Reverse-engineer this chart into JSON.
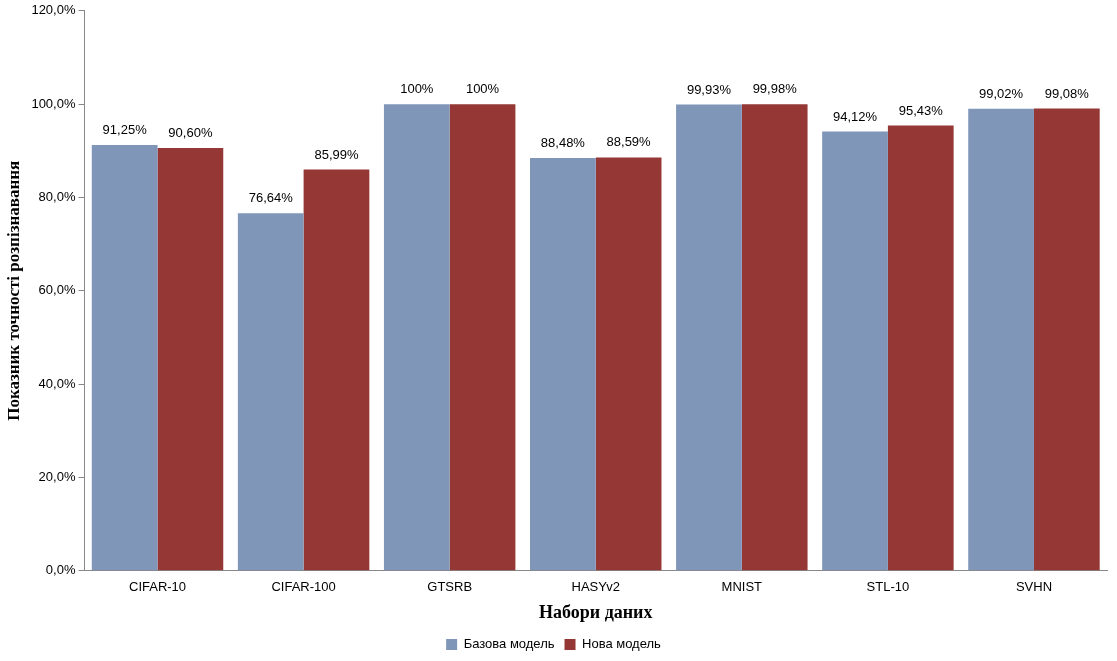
{
  "chart_data": {
    "type": "bar",
    "xlabel": "Набори даних",
    "ylabel": "Показник точності розпізнавання",
    "categories": [
      "CIFAR-10",
      "CIFAR-100",
      "GTSRB",
      "HASYv2",
      "MNIST",
      "STL-10",
      "SVHN"
    ],
    "series": [
      {
        "name": "Базова модель",
        "color": "#7f96b8",
        "values": [
          91.25,
          76.64,
          100,
          88.48,
          99.93,
          94.12,
          99.02
        ],
        "value_labels": [
          "91,25%",
          "76,64%",
          "100%",
          "88,48%",
          "99,93%",
          "94,12%",
          "99,02%"
        ]
      },
      {
        "name": "Нова модель",
        "color": "#953735",
        "values": [
          90.6,
          85.99,
          100,
          88.59,
          99.98,
          95.43,
          99.08
        ],
        "value_labels": [
          "90,60%",
          "85,99%",
          "100%",
          "88,59%",
          "99,98%",
          "95,43%",
          "99,08%"
        ]
      }
    ],
    "ylim": [
      0,
      120
    ],
    "yticks": [
      {
        "value": 0,
        "label": "0,0%"
      },
      {
        "value": 20,
        "label": "20,0%"
      },
      {
        "value": 40,
        "label": "40,0%"
      },
      {
        "value": 60,
        "label": "60,0%"
      },
      {
        "value": 80,
        "label": "80,0%"
      },
      {
        "value": 100,
        "label": "100,0%"
      },
      {
        "value": 120,
        "label": "120,0%"
      }
    ],
    "grid": false,
    "legend": "bottom"
  }
}
